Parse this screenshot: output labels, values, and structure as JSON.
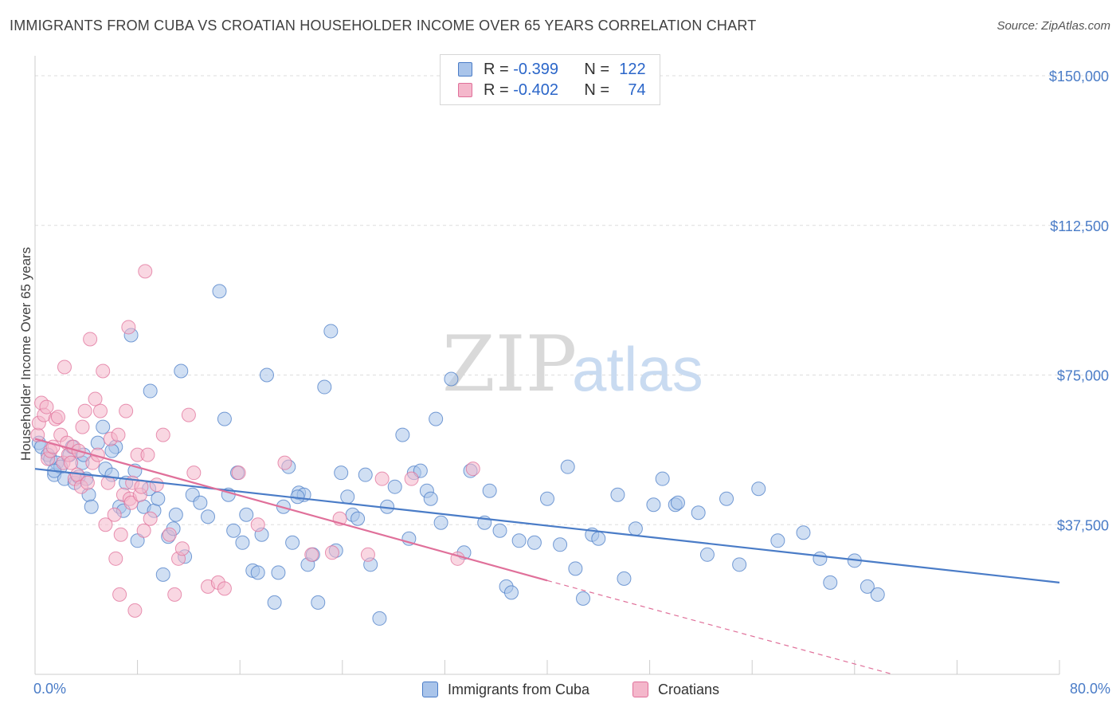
{
  "title": "IMMIGRANTS FROM CUBA VS CROATIAN HOUSEHOLDER INCOME OVER 65 YEARS CORRELATION CHART",
  "source": "Source: ZipAtlas.com",
  "watermark": {
    "zip": "ZIP",
    "atlas": "atlas"
  },
  "colors": {
    "blue": "#4a7cc7",
    "blue_fill": "#a9c4ea",
    "pink": "#e0709a",
    "pink_fill": "#f4b7cb",
    "grid": "#dddddd"
  },
  "legend": {
    "rows": [
      {
        "r_label": "R =",
        "r_value": "-0.399",
        "n_label": "N =",
        "n_value": "122"
      },
      {
        "r_label": "R =",
        "r_value": "-0.402",
        "n_label": "N =",
        "n_value": "74"
      }
    ]
  },
  "chart_data": {
    "type": "scatter",
    "title": "IMMIGRANTS FROM CUBA VS CROATIAN HOUSEHOLDER INCOME OVER 65 YEARS CORRELATION CHART",
    "xlabel": "",
    "ylabel": "Householder Income Over 65 years",
    "xlim": [
      0,
      80
    ],
    "ylim": [
      0,
      155000
    ],
    "x_tick_labels": [
      "0.0%",
      "80.0%"
    ],
    "y_ticks": [
      37500,
      75000,
      112500,
      150000
    ],
    "y_tick_labels": [
      "$37,500",
      "$75,000",
      "$112,500",
      "$150,000"
    ],
    "grid": true,
    "legend_position": "bottom",
    "series": [
      {
        "name": "Immigrants from Cuba",
        "color": "#4a7cc7",
        "r": -0.399,
        "n": 122,
        "trend": {
          "x0": 0,
          "y0": 51500,
          "x1": 80,
          "y1": 23000
        },
        "points": [
          [
            0.3,
            58000
          ],
          [
            0.5,
            57000
          ],
          [
            1.0,
            55000
          ],
          [
            1.2,
            54000
          ],
          [
            1.5,
            50000
          ],
          [
            1.7,
            53000
          ],
          [
            2.0,
            52000
          ],
          [
            2.3,
            49000
          ],
          [
            2.7,
            55000
          ],
          [
            2.9,
            57000
          ],
          [
            3.1,
            48000
          ],
          [
            3.4,
            49500
          ],
          [
            3.7,
            53000
          ],
          [
            4.0,
            49000
          ],
          [
            4.2,
            45000
          ],
          [
            4.4,
            42000
          ],
          [
            4.9,
            58000
          ],
          [
            5.3,
            62000
          ],
          [
            5.5,
            51500
          ],
          [
            6.0,
            50000
          ],
          [
            6.3,
            57000
          ],
          [
            6.6,
            42000
          ],
          [
            6.9,
            41000
          ],
          [
            7.1,
            48000
          ],
          [
            7.5,
            85000
          ],
          [
            7.8,
            51000
          ],
          [
            8.0,
            33500
          ],
          [
            8.5,
            42000
          ],
          [
            9.0,
            71000
          ],
          [
            9.3,
            41000
          ],
          [
            9.6,
            44000
          ],
          [
            10.0,
            25000
          ],
          [
            10.4,
            34500
          ],
          [
            11.0,
            40000
          ],
          [
            11.4,
            76000
          ],
          [
            11.7,
            29500
          ],
          [
            12.3,
            45000
          ],
          [
            12.9,
            43000
          ],
          [
            13.5,
            39500
          ],
          [
            14.4,
            96000
          ],
          [
            14.8,
            64000
          ],
          [
            15.1,
            45000
          ],
          [
            15.5,
            36000
          ],
          [
            15.8,
            50500
          ],
          [
            16.2,
            33000
          ],
          [
            16.5,
            40000
          ],
          [
            17.0,
            26000
          ],
          [
            17.4,
            25500
          ],
          [
            17.7,
            35000
          ],
          [
            18.1,
            75000
          ],
          [
            18.7,
            18000
          ],
          [
            19.0,
            25500
          ],
          [
            19.4,
            42000
          ],
          [
            19.8,
            52000
          ],
          [
            20.1,
            33000
          ],
          [
            20.6,
            45500
          ],
          [
            21.0,
            45000
          ],
          [
            21.3,
            27500
          ],
          [
            21.7,
            30000
          ],
          [
            22.1,
            18000
          ],
          [
            22.6,
            72000
          ],
          [
            23.1,
            86000
          ],
          [
            23.5,
            31000
          ],
          [
            23.9,
            50500
          ],
          [
            24.4,
            44500
          ],
          [
            24.8,
            40000
          ],
          [
            25.2,
            39000
          ],
          [
            25.8,
            50000
          ],
          [
            26.2,
            27500
          ],
          [
            26.9,
            14000
          ],
          [
            27.5,
            42000
          ],
          [
            28.1,
            47000
          ],
          [
            28.7,
            60000
          ],
          [
            29.2,
            34000
          ],
          [
            29.6,
            50500
          ],
          [
            30.1,
            51000
          ],
          [
            30.6,
            46000
          ],
          [
            30.9,
            44000
          ],
          [
            31.3,
            64000
          ],
          [
            31.7,
            38000
          ],
          [
            32.5,
            74000
          ],
          [
            33.5,
            30500
          ],
          [
            34.0,
            51000
          ],
          [
            35.1,
            38000
          ],
          [
            35.5,
            46000
          ],
          [
            36.3,
            36000
          ],
          [
            36.8,
            22000
          ],
          [
            37.2,
            20500
          ],
          [
            37.8,
            33500
          ],
          [
            39.0,
            33000
          ],
          [
            40.0,
            44000
          ],
          [
            41.0,
            32500
          ],
          [
            41.6,
            52000
          ],
          [
            42.2,
            26500
          ],
          [
            42.8,
            19000
          ],
          [
            43.5,
            35000
          ],
          [
            44.0,
            34000
          ],
          [
            45.5,
            45000
          ],
          [
            46.0,
            24000
          ],
          [
            46.9,
            36500
          ],
          [
            48.3,
            42500
          ],
          [
            49.0,
            49000
          ],
          [
            50.0,
            42500
          ],
          [
            50.2,
            43000
          ],
          [
            51.8,
            40500
          ],
          [
            52.5,
            30000
          ],
          [
            54.0,
            44000
          ],
          [
            55.0,
            27500
          ],
          [
            56.5,
            46500
          ],
          [
            58.0,
            33500
          ],
          [
            60.0,
            35500
          ],
          [
            61.3,
            29000
          ],
          [
            62.1,
            23000
          ],
          [
            64.0,
            28500
          ],
          [
            65.0,
            22000
          ],
          [
            65.8,
            20000
          ],
          [
            3.8,
            55000
          ],
          [
            1.5,
            51000
          ],
          [
            8.9,
            46500
          ],
          [
            6.0,
            56000
          ],
          [
            10.8,
            36500
          ],
          [
            20.5,
            44500
          ]
        ]
      },
      {
        "name": "Croatians",
        "color": "#e0709a",
        "r": -0.402,
        "n": 74,
        "trend": {
          "x0": 0,
          "y0": 59000,
          "x1": 40,
          "y1": 23500
        },
        "trend_dashed": {
          "x0": 40,
          "y0": 23500,
          "x1": 67,
          "y1": 0
        },
        "points": [
          [
            0.2,
            60000
          ],
          [
            0.3,
            63000
          ],
          [
            0.5,
            68000
          ],
          [
            0.7,
            65000
          ],
          [
            0.9,
            67000
          ],
          [
            1.0,
            54000
          ],
          [
            1.2,
            56000
          ],
          [
            1.4,
            57000
          ],
          [
            1.6,
            64000
          ],
          [
            1.8,
            64500
          ],
          [
            2.0,
            60000
          ],
          [
            2.2,
            53000
          ],
          [
            2.3,
            77000
          ],
          [
            2.5,
            58000
          ],
          [
            2.6,
            55000
          ],
          [
            2.8,
            53000
          ],
          [
            3.0,
            57000
          ],
          [
            3.1,
            49000
          ],
          [
            3.3,
            50000
          ],
          [
            3.4,
            56000
          ],
          [
            3.6,
            47000
          ],
          [
            3.7,
            62000
          ],
          [
            3.9,
            66000
          ],
          [
            4.1,
            48000
          ],
          [
            4.3,
            84000
          ],
          [
            4.5,
            53000
          ],
          [
            4.7,
            69000
          ],
          [
            4.9,
            55000
          ],
          [
            5.1,
            66000
          ],
          [
            5.3,
            76000
          ],
          [
            5.5,
            37500
          ],
          [
            5.7,
            48000
          ],
          [
            5.9,
            59000
          ],
          [
            6.2,
            40000
          ],
          [
            6.3,
            29000
          ],
          [
            6.5,
            60000
          ],
          [
            6.6,
            20000
          ],
          [
            6.7,
            35000
          ],
          [
            6.9,
            45000
          ],
          [
            7.1,
            66000
          ],
          [
            7.3,
            87000
          ],
          [
            7.4,
            44000
          ],
          [
            7.5,
            43000
          ],
          [
            7.6,
            48000
          ],
          [
            7.8,
            16000
          ],
          [
            8.0,
            55000
          ],
          [
            8.2,
            45000
          ],
          [
            8.3,
            47000
          ],
          [
            8.5,
            36000
          ],
          [
            8.6,
            101000
          ],
          [
            8.8,
            55000
          ],
          [
            9.0,
            39000
          ],
          [
            9.5,
            47500
          ],
          [
            10.0,
            60000
          ],
          [
            10.5,
            35000
          ],
          [
            10.9,
            20000
          ],
          [
            11.2,
            29000
          ],
          [
            11.5,
            31500
          ],
          [
            12.0,
            65000
          ],
          [
            12.4,
            50500
          ],
          [
            13.5,
            22000
          ],
          [
            14.3,
            23000
          ],
          [
            14.8,
            21500
          ],
          [
            15.9,
            50500
          ],
          [
            17.4,
            37500
          ],
          [
            19.5,
            53000
          ],
          [
            21.6,
            30000
          ],
          [
            23.2,
            30500
          ],
          [
            23.8,
            39000
          ],
          [
            26.0,
            30000
          ],
          [
            27.1,
            49000
          ],
          [
            29.4,
            49000
          ],
          [
            33.0,
            29000
          ],
          [
            34.2,
            51500
          ]
        ]
      }
    ]
  },
  "bottom_legend": [
    "Immigrants from Cuba",
    "Croatians"
  ]
}
